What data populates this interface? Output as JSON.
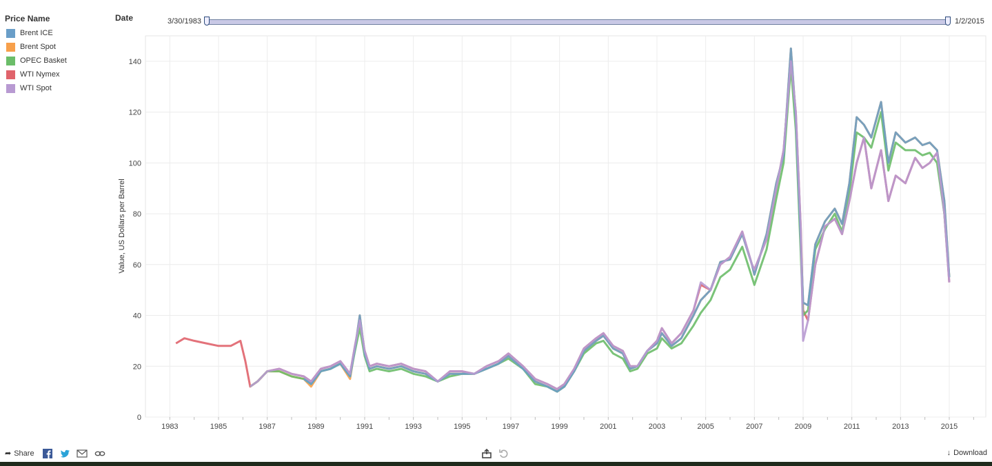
{
  "legend": {
    "title": "Price Name",
    "items": [
      {
        "label": "Brent ICE",
        "color": "#6a9ec8"
      },
      {
        "label": "Brent Spot",
        "color": "#f7a04b"
      },
      {
        "label": "OPEC Basket",
        "color": "#6bbd69"
      },
      {
        "label": "WTI Nymex",
        "color": "#e0636b"
      },
      {
        "label": "WTI Spot",
        "color": "#b89ad2"
      }
    ]
  },
  "filter": {
    "label": "Date",
    "start": "3/30/1983",
    "end": "1/2/2015"
  },
  "footer": {
    "share_label": "Share",
    "download_label": "Download"
  },
  "chart_data": {
    "type": "line",
    "ylabel": "Value, US Dollars per Barrel",
    "xlabel": "",
    "ylim": [
      0,
      150
    ],
    "xlim": [
      1982.0,
      2016.5
    ],
    "yticks": [
      0,
      20,
      40,
      60,
      80,
      100,
      120,
      140
    ],
    "xticks": [
      "1983",
      "1985",
      "1987",
      "1989",
      "1991",
      "1993",
      "1995",
      "1997",
      "1999",
      "2001",
      "2003",
      "2005",
      "2007",
      "2009",
      "2011",
      "2013",
      "2015"
    ],
    "grid": true,
    "legend_position": "left",
    "series": [
      {
        "name": "WTI Nymex",
        "color": "#e0636b",
        "x": [
          1983.25,
          1983.6,
          1984.0,
          1984.5,
          1985.0,
          1985.5,
          1985.9,
          1986.1,
          1986.3,
          1986.6,
          1987.0,
          1987.5,
          1988.0,
          1988.5,
          1988.8,
          1989.2,
          1989.6,
          1990.0,
          1990.4,
          1990.6,
          1990.8,
          1991.0,
          1991.2,
          1991.5,
          1992.0,
          1992.5,
          1993.0,
          1993.5,
          1994.0,
          1994.5,
          1995.0,
          1995.5,
          1996.0,
          1996.5,
          1996.9,
          1997.5,
          1998.0,
          1998.5,
          1998.9,
          1999.2,
          1999.6,
          2000.0,
          2000.5,
          2000.8,
          2001.2,
          2001.6,
          2001.9,
          2002.2,
          2002.6,
          2003.0,
          2003.2,
          2003.6,
          2004.0,
          2004.5,
          2004.8,
          2005.2,
          2005.6,
          2006.0,
          2006.5,
          2006.9,
          2007.0,
          2007.5,
          2007.9,
          2008.2,
          2008.5,
          2008.7,
          2008.9,
          2009.0,
          2009.2,
          2009.5,
          2009.9,
          2010.3,
          2010.6,
          2010.9,
          2011.2,
          2011.5,
          2011.8,
          2012.2,
          2012.5,
          2012.8,
          2013.2,
          2013.6,
          2013.9,
          2014.2,
          2014.5,
          2014.8,
          2015.0
        ],
        "y": [
          29,
          31,
          30,
          29,
          28,
          28,
          30,
          22,
          12,
          14,
          18,
          19,
          17,
          16,
          14,
          19,
          20,
          22,
          17,
          28,
          38,
          26,
          20,
          21,
          20,
          21,
          19,
          18,
          14,
          18,
          18,
          17,
          20,
          22,
          25,
          20,
          15,
          13,
          11,
          13,
          19,
          27,
          31,
          33,
          28,
          26,
          20,
          20,
          26,
          30,
          35,
          29,
          33,
          42,
          52,
          50,
          60,
          63,
          73,
          60,
          58,
          70,
          90,
          105,
          140,
          120,
          75,
          42,
          38,
          60,
          75,
          78,
          72,
          85,
          100,
          110,
          90,
          105,
          85,
          95,
          92,
          102,
          98,
          100,
          104,
          80,
          53
        ]
      },
      {
        "name": "Brent Spot",
        "color": "#f7a04b",
        "x": [
          1986.3,
          1986.6,
          1987.0,
          1987.5,
          1988.0,
          1988.5,
          1988.8,
          1989.2,
          1989.6,
          1990.0,
          1990.4,
          1990.6,
          1990.8,
          1991.0,
          1991.2,
          1991.5,
          1992.0,
          1992.5,
          1993.0,
          1993.5,
          1994.0,
          1994.5,
          1995.0,
          1995.5,
          1996.0,
          1996.5,
          1996.9,
          1997.5,
          1998.0,
          1998.5,
          1998.9,
          1999.2,
          1999.6,
          2000.0,
          2000.5,
          2000.8,
          2001.2,
          2001.6,
          2001.9,
          2002.2,
          2002.6,
          2003.0,
          2003.2,
          2003.6,
          2004.0,
          2004.5,
          2004.8,
          2005.2,
          2005.6,
          2006.0,
          2006.5,
          2006.9,
          2007.0,
          2007.5,
          2007.9,
          2008.2,
          2008.5,
          2008.7,
          2008.9,
          2009.0,
          2009.2,
          2009.5,
          2009.9,
          2010.3,
          2010.6,
          2010.9,
          2011.2,
          2011.5,
          2011.8,
          2012.2,
          2012.5,
          2012.8,
          2013.2,
          2013.6,
          2013.9,
          2014.2,
          2014.5,
          2014.8,
          2015.0
        ],
        "y": [
          12,
          14,
          18,
          18,
          16,
          15,
          12,
          18,
          19,
          21,
          15,
          27,
          40,
          25,
          19,
          20,
          19,
          20,
          18,
          17,
          14,
          17,
          17,
          17,
          19,
          21,
          24,
          19,
          14,
          12,
          10,
          12,
          18,
          26,
          30,
          32,
          27,
          25,
          19,
          20,
          26,
          29,
          33,
          28,
          31,
          40,
          46,
          50,
          61,
          62,
          72,
          60,
          56,
          72,
          92,
          103,
          145,
          118,
          70,
          45,
          44,
          68,
          77,
          82,
          76,
          92,
          118,
          115,
          110,
          124,
          100,
          112,
          108,
          110,
          107,
          108,
          105,
          85,
          55
        ]
      },
      {
        "name": "OPEC Basket",
        "color": "#6bbd69",
        "x": [
          1986.3,
          1986.6,
          1987.0,
          1987.5,
          1988.0,
          1988.5,
          1988.8,
          1989.2,
          1989.6,
          1990.0,
          1990.4,
          1990.6,
          1990.8,
          1991.0,
          1991.2,
          1991.5,
          1992.0,
          1992.5,
          1993.0,
          1993.5,
          1994.0,
          1994.5,
          1995.0,
          1995.5,
          1996.0,
          1996.5,
          1996.9,
          1997.5,
          1998.0,
          1998.5,
          1998.9,
          1999.2,
          1999.6,
          2000.0,
          2000.5,
          2000.8,
          2001.2,
          2001.6,
          2001.9,
          2002.2,
          2002.6,
          2003.0,
          2003.2,
          2003.6,
          2004.0,
          2004.5,
          2004.8,
          2005.2,
          2005.6,
          2006.0,
          2006.5,
          2006.9,
          2007.0,
          2007.5,
          2007.9,
          2008.2,
          2008.5,
          2008.7,
          2008.9,
          2009.0,
          2009.2,
          2009.5,
          2009.9,
          2010.3,
          2010.6,
          2010.9,
          2011.2,
          2011.5,
          2011.8,
          2012.2,
          2012.5,
          2012.8,
          2013.2,
          2013.6,
          2013.9,
          2014.2,
          2014.5,
          2014.8,
          2015.0
        ],
        "y": [
          12,
          14,
          18,
          18,
          16,
          15,
          13,
          18,
          19,
          21,
          16,
          26,
          35,
          24,
          18,
          19,
          18,
          19,
          17,
          16,
          14,
          16,
          17,
          17,
          19,
          21,
          23,
          19,
          13,
          12,
          10,
          12,
          18,
          25,
          29,
          30,
          25,
          23,
          18,
          19,
          25,
          27,
          31,
          27,
          29,
          36,
          41,
          46,
          55,
          58,
          67,
          55,
          52,
          66,
          86,
          100,
          138,
          113,
          65,
          40,
          42,
          66,
          74,
          80,
          73,
          88,
          112,
          110,
          106,
          120,
          97,
          108,
          105,
          105,
          103,
          104,
          100,
          80,
          55
        ]
      },
      {
        "name": "Brent ICE",
        "color": "#6a9ec8",
        "x": [
          1988.5,
          1988.8,
          1989.2,
          1989.6,
          1990.0,
          1990.4,
          1990.6,
          1990.8,
          1991.0,
          1991.2,
          1991.5,
          1992.0,
          1992.5,
          1993.0,
          1993.5,
          1994.0,
          1994.5,
          1995.0,
          1995.5,
          1996.0,
          1996.5,
          1996.9,
          1997.5,
          1998.0,
          1998.5,
          1998.9,
          1999.2,
          1999.6,
          2000.0,
          2000.5,
          2000.8,
          2001.2,
          2001.6,
          2001.9,
          2002.2,
          2002.6,
          2003.0,
          2003.2,
          2003.6,
          2004.0,
          2004.5,
          2004.8,
          2005.2,
          2005.6,
          2006.0,
          2006.5,
          2006.9,
          2007.0,
          2007.5,
          2007.9,
          2008.2,
          2008.5,
          2008.7,
          2008.9,
          2009.0,
          2009.2,
          2009.5,
          2009.9,
          2010.3,
          2010.6,
          2010.9,
          2011.2,
          2011.5,
          2011.8,
          2012.2,
          2012.5,
          2012.8,
          2013.2,
          2013.6,
          2013.9,
          2014.2,
          2014.5,
          2014.8,
          2015.0
        ],
        "y": [
          15,
          13,
          18,
          19,
          21,
          16,
          27,
          40,
          25,
          19,
          20,
          19,
          20,
          18,
          17,
          14,
          17,
          17,
          17,
          19,
          21,
          24,
          19,
          14,
          12,
          10,
          12,
          18,
          26,
          30,
          32,
          27,
          25,
          19,
          20,
          26,
          29,
          33,
          28,
          31,
          40,
          46,
          50,
          61,
          62,
          72,
          60,
          56,
          72,
          92,
          103,
          145,
          118,
          70,
          45,
          44,
          68,
          77,
          82,
          76,
          92,
          118,
          115,
          110,
          124,
          100,
          112,
          108,
          110,
          107,
          108,
          105,
          85,
          55
        ]
      },
      {
        "name": "WTI Spot",
        "color": "#b89ad2",
        "x": [
          1986.3,
          1986.6,
          1987.0,
          1987.5,
          1988.0,
          1988.5,
          1988.8,
          1989.2,
          1989.6,
          1990.0,
          1990.4,
          1990.6,
          1990.8,
          1991.0,
          1991.2,
          1991.5,
          1992.0,
          1992.5,
          1993.0,
          1993.5,
          1994.0,
          1994.5,
          1995.0,
          1995.5,
          1996.0,
          1996.5,
          1996.9,
          1997.5,
          1998.0,
          1998.5,
          1998.9,
          1999.2,
          1999.6,
          2000.0,
          2000.5,
          2000.8,
          2001.2,
          2001.6,
          2001.9,
          2002.2,
          2002.6,
          2003.0,
          2003.2,
          2003.6,
          2004.0,
          2004.5,
          2004.8,
          2005.2,
          2005.6,
          2006.0,
          2006.5,
          2006.9,
          2007.0,
          2007.5,
          2007.9,
          2008.2,
          2008.5,
          2008.7,
          2008.9,
          2009.0,
          2009.2,
          2009.5,
          2009.9,
          2010.3,
          2010.6,
          2010.9,
          2011.2,
          2011.5,
          2011.8,
          2012.2,
          2012.5,
          2012.8,
          2013.2,
          2013.6,
          2013.9,
          2014.2,
          2014.5,
          2014.8,
          2015.0
        ],
        "y": [
          12,
          14,
          18,
          19,
          17,
          16,
          14,
          19,
          20,
          22,
          17,
          28,
          38,
          26,
          20,
          21,
          20,
          21,
          19,
          18,
          14,
          18,
          18,
          17,
          20,
          22,
          25,
          20,
          15,
          13,
          11,
          13,
          19,
          27,
          31,
          33,
          28,
          26,
          20,
          20,
          26,
          30,
          35,
          29,
          33,
          42,
          53,
          50,
          60,
          63,
          73,
          60,
          58,
          70,
          90,
          105,
          140,
          120,
          75,
          30,
          38,
          60,
          75,
          78,
          72,
          85,
          100,
          110,
          90,
          105,
          85,
          95,
          92,
          102,
          98,
          100,
          104,
          80,
          53
        ]
      }
    ]
  }
}
